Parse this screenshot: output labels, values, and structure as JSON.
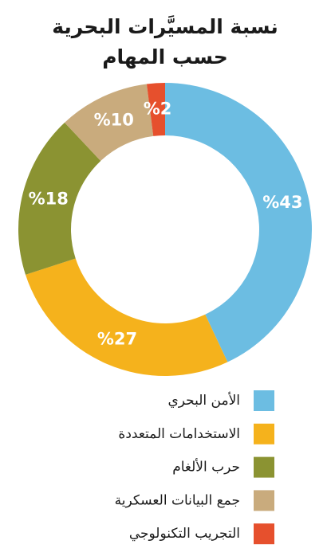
{
  "chart_data": {
    "type": "donut",
    "title": [
      "نسبة المسيَّرات البحرية",
      "حسب المهام"
    ],
    "categories": [
      "الأمن البحري",
      "الاستخدامات المتعددة",
      "حرب الألغام",
      "جمع البيانات العسكرية",
      "التجريب التكنولوجي"
    ],
    "values": [
      43,
      27,
      18,
      10,
      2
    ],
    "value_labels": [
      "%43",
      "%27",
      "%18",
      "%10",
      "%2"
    ],
    "colors": [
      "#6cbde2",
      "#f5b21c",
      "#8b9332",
      "#c9ab7d",
      "#e6502d"
    ]
  }
}
